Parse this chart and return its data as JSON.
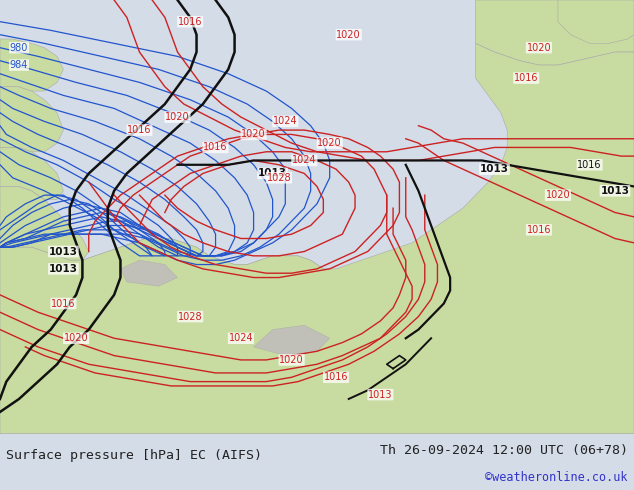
{
  "title_left": "Surface pressure [hPa] EC (AIFS)",
  "title_right": "Th 26-09-2024 12:00 UTC (06+78)",
  "credit": "©weatheronline.co.uk",
  "sea_color": "#d4dce8",
  "land_color": "#c8dba0",
  "land_edge_color": "#aaaaaa",
  "footer_bg": "#d4dce8",
  "title_color": "#222222",
  "credit_color": "#3333cc",
  "blue_color": "#2255cc",
  "black_color": "#111111",
  "red_color": "#cc2222",
  "fig_width": 6.34,
  "fig_height": 4.9,
  "dpi": 100
}
